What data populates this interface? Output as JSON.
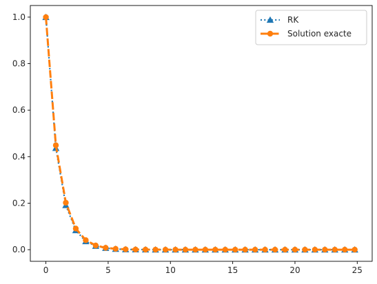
{
  "chart_data": {
    "type": "line",
    "title": "",
    "xlabel": "",
    "ylabel": "",
    "xlim": [
      -1.25,
      26.2
    ],
    "ylim": [
      -0.05,
      1.05
    ],
    "grid": false,
    "legend_position": "top-right",
    "x_ticks": [
      {
        "value": 0,
        "label": "0"
      },
      {
        "value": 5,
        "label": "5"
      },
      {
        "value": 10,
        "label": "10"
      },
      {
        "value": 15,
        "label": "15"
      },
      {
        "value": 20,
        "label": "20"
      },
      {
        "value": 25,
        "label": "25"
      }
    ],
    "y_ticks": [
      {
        "value": 0.0,
        "label": "0.0"
      },
      {
        "value": 0.2,
        "label": "0.2"
      },
      {
        "value": 0.4,
        "label": "0.4"
      },
      {
        "value": 0.6,
        "label": "0.6"
      },
      {
        "value": 0.8,
        "label": "0.8"
      },
      {
        "value": 1.0,
        "label": "1.0"
      }
    ],
    "x": [
      0,
      0.8,
      1.6,
      2.4,
      3.2,
      4.0,
      4.8,
      5.6,
      6.4,
      7.2,
      8.0,
      8.8,
      9.6,
      10.4,
      11.2,
      12.0,
      12.8,
      13.6,
      14.4,
      15.2,
      16.0,
      16.8,
      17.6,
      18.4,
      19.2,
      20.0,
      20.8,
      21.6,
      22.4,
      23.2,
      24.0,
      24.8
    ],
    "series": [
      {
        "name": "RK",
        "color": "#1f77b4",
        "line_style": "dotted",
        "marker": "triangle-up",
        "values": [
          1.0,
          0.437,
          0.191,
          0.083,
          0.036,
          0.016,
          0.007,
          0.003,
          0.001,
          0.0006,
          0.0003,
          0.0001,
          0.0,
          0.0,
          0.0,
          0.0,
          0.0,
          0.0,
          0.0,
          0.0,
          0.0,
          0.0,
          0.0,
          0.0,
          0.0,
          0.0,
          0.0,
          0.0,
          0.0,
          0.0,
          0.0,
          0.0
        ]
      },
      {
        "name": "Solution exacte",
        "color": "#ff7f0e",
        "line_style": "dashed",
        "marker": "circle",
        "values": [
          1.0,
          0.449,
          0.202,
          0.091,
          0.041,
          0.018,
          0.008,
          0.0037,
          0.0017,
          0.0007,
          0.0003,
          0.0002,
          0.0001,
          0.0,
          0.0,
          0.0,
          0.0,
          0.0,
          0.0,
          0.0,
          0.0,
          0.0,
          0.0,
          0.0,
          0.0,
          0.0,
          0.0,
          0.0,
          0.0,
          0.0,
          0.0,
          0.0
        ]
      }
    ]
  }
}
